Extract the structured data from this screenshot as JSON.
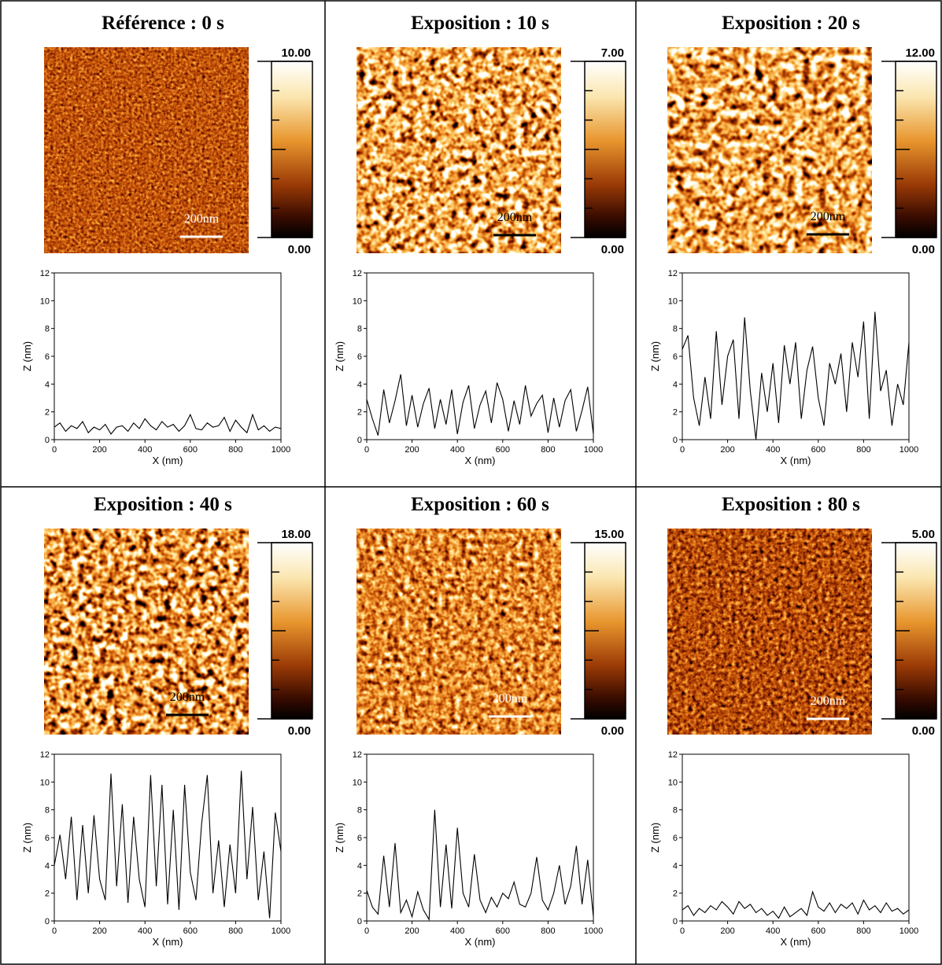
{
  "chart_data": [
    {
      "type": "line",
      "title": "Référence : 0 s",
      "colorbar_labels": [
        "10.00",
        "0.00"
      ],
      "scale_bar": "200nm",
      "x_label": "X (nm)",
      "y_label": "Z (nm)",
      "x": [
        0,
        25,
        50,
        75,
        100,
        125,
        150,
        175,
        200,
        225,
        250,
        275,
        300,
        325,
        350,
        375,
        400,
        425,
        450,
        475,
        500,
        525,
        550,
        575,
        600,
        625,
        650,
        675,
        700,
        725,
        750,
        775,
        800,
        825,
        850,
        875,
        900,
        925,
        950,
        975,
        1000
      ],
      "values": [
        0.9,
        1.2,
        0.6,
        1.0,
        0.8,
        1.3,
        0.5,
        0.9,
        0.7,
        1.1,
        0.4,
        0.9,
        1.0,
        0.6,
        1.2,
        0.8,
        1.5,
        1.0,
        0.7,
        1.3,
        0.9,
        1.1,
        0.6,
        1.0,
        1.8,
        0.8,
        0.7,
        1.2,
        0.9,
        1.0,
        1.6,
        0.6,
        1.4,
        0.9,
        0.5,
        1.8,
        0.7,
        1.0,
        0.6,
        0.9,
        0.8
      ],
      "color": "#000000",
      "xlim": [
        0,
        1000
      ],
      "ylim": [
        0,
        12
      ],
      "xticks": [
        0,
        200,
        400,
        600,
        800,
        1000
      ],
      "yticks": [
        0,
        2,
        4,
        6,
        8,
        10,
        12
      ]
    },
    {
      "type": "line",
      "title": "Exposition : 10 s",
      "colorbar_labels": [
        "7.00",
        "0.00"
      ],
      "scale_bar": "200nm",
      "x_label": "X (nm)",
      "y_label": "Z (nm)",
      "x": [
        0,
        25,
        50,
        75,
        100,
        125,
        150,
        175,
        200,
        225,
        250,
        275,
        300,
        325,
        350,
        375,
        400,
        425,
        450,
        475,
        500,
        525,
        550,
        575,
        600,
        625,
        650,
        675,
        700,
        725,
        750,
        775,
        800,
        825,
        850,
        875,
        900,
        925,
        950,
        975,
        1000
      ],
      "values": [
        2.9,
        1.5,
        0.3,
        3.6,
        1.2,
        2.8,
        4.7,
        1.0,
        3.2,
        0.9,
        2.6,
        3.7,
        0.8,
        2.9,
        1.1,
        3.6,
        0.4,
        2.7,
        3.9,
        0.8,
        2.5,
        3.5,
        1.2,
        4.1,
        2.9,
        0.6,
        2.8,
        1.1,
        3.9,
        1.7,
        2.6,
        3.2,
        0.5,
        3.0,
        0.9,
        2.8,
        3.6,
        0.6,
        2.1,
        3.8,
        0.4
      ],
      "color": "#000000",
      "xlim": [
        0,
        1000
      ],
      "ylim": [
        0,
        12
      ],
      "xticks": [
        0,
        200,
        400,
        600,
        800,
        1000
      ],
      "yticks": [
        0,
        2,
        4,
        6,
        8,
        10,
        12
      ]
    },
    {
      "type": "line",
      "title": "Exposition : 20 s",
      "colorbar_labels": [
        "12.00",
        "0.00"
      ],
      "scale_bar": "200nm",
      "x_label": "X (nm)",
      "y_label": "Z (nm)",
      "x": [
        0,
        25,
        50,
        75,
        100,
        125,
        150,
        175,
        200,
        225,
        250,
        275,
        300,
        325,
        350,
        375,
        400,
        425,
        450,
        475,
        500,
        525,
        550,
        575,
        600,
        625,
        650,
        675,
        700,
        725,
        750,
        775,
        800,
        825,
        850,
        875,
        900,
        925,
        950,
        975,
        1000
      ],
      "values": [
        6.5,
        7.5,
        3.0,
        1.0,
        4.5,
        1.5,
        7.8,
        2.5,
        6.0,
        7.2,
        1.5,
        8.8,
        3.5,
        0.0,
        4.8,
        2.0,
        5.5,
        1.2,
        6.8,
        4.0,
        7.0,
        1.5,
        5.0,
        6.7,
        3.0,
        1.0,
        5.5,
        4.0,
        6.2,
        2.0,
        7.0,
        4.5,
        8.5,
        1.5,
        9.2,
        3.5,
        5.0,
        1.0,
        4.0,
        2.5,
        7.0
      ],
      "color": "#000000",
      "xlim": [
        0,
        1000
      ],
      "ylim": [
        0,
        12
      ],
      "xticks": [
        0,
        200,
        400,
        600,
        800,
        1000
      ],
      "yticks": [
        0,
        2,
        4,
        6,
        8,
        10,
        12
      ]
    },
    {
      "type": "line",
      "title": "Exposition : 40 s",
      "colorbar_labels": [
        "18.00",
        "0.00"
      ],
      "scale_bar": "200nm",
      "x_label": "X (nm)",
      "y_label": "Z (nm)",
      "x": [
        0,
        25,
        50,
        75,
        100,
        125,
        150,
        175,
        200,
        225,
        250,
        275,
        300,
        325,
        350,
        375,
        400,
        425,
        450,
        475,
        500,
        525,
        550,
        575,
        600,
        625,
        650,
        675,
        700,
        725,
        750,
        775,
        800,
        825,
        850,
        875,
        900,
        925,
        950,
        975,
        1000
      ],
      "values": [
        4.0,
        6.2,
        3.0,
        7.5,
        1.5,
        6.9,
        2.0,
        7.6,
        3.0,
        1.5,
        10.6,
        2.5,
        8.4,
        1.3,
        7.5,
        3.0,
        1.0,
        10.5,
        2.5,
        9.8,
        1.2,
        8.0,
        0.8,
        9.8,
        3.5,
        1.5,
        7.0,
        10.5,
        2.0,
        5.8,
        1.0,
        5.5,
        2.0,
        10.8,
        3.0,
        8.2,
        1.5,
        5.0,
        0.2,
        7.8,
        5.0
      ],
      "color": "#000000",
      "xlim": [
        0,
        1000
      ],
      "ylim": [
        0,
        12
      ],
      "xticks": [
        0,
        200,
        400,
        600,
        800,
        1000
      ],
      "yticks": [
        0,
        2,
        4,
        6,
        8,
        10,
        12
      ]
    },
    {
      "type": "line",
      "title": "Exposition : 60 s",
      "colorbar_labels": [
        "15.00",
        "0.00"
      ],
      "scale_bar": "200nm",
      "x_label": "X (nm)",
      "y_label": "Z (nm)",
      "x": [
        0,
        25,
        50,
        75,
        100,
        125,
        150,
        175,
        200,
        225,
        250,
        275,
        300,
        325,
        350,
        375,
        400,
        425,
        450,
        475,
        500,
        525,
        550,
        575,
        600,
        625,
        650,
        675,
        700,
        725,
        750,
        775,
        800,
        825,
        850,
        875,
        900,
        925,
        950,
        975,
        1000
      ],
      "values": [
        2.2,
        1.0,
        0.5,
        4.7,
        1.0,
        5.6,
        0.6,
        1.5,
        0.3,
        2.1,
        0.8,
        0.1,
        8.0,
        1.0,
        5.5,
        0.9,
        6.7,
        2.0,
        1.0,
        4.8,
        1.5,
        0.6,
        1.7,
        1.0,
        2.0,
        1.6,
        2.8,
        1.2,
        1.0,
        2.0,
        4.6,
        1.5,
        0.8,
        2.0,
        4.0,
        1.2,
        2.5,
        5.4,
        1.2,
        4.4,
        0.3
      ],
      "color": "#000000",
      "xlim": [
        0,
        1000
      ],
      "ylim": [
        0,
        12
      ],
      "xticks": [
        0,
        200,
        400,
        600,
        800,
        1000
      ],
      "yticks": [
        0,
        2,
        4,
        6,
        8,
        10,
        12
      ]
    },
    {
      "type": "line",
      "title": "Exposition : 80 s",
      "colorbar_labels": [
        "5.00",
        "0.00"
      ],
      "scale_bar": "200nm",
      "x_label": "X (nm)",
      "y_label": "Z (nm)",
      "x": [
        0,
        25,
        50,
        75,
        100,
        125,
        150,
        175,
        200,
        225,
        250,
        275,
        300,
        325,
        350,
        375,
        400,
        425,
        450,
        475,
        500,
        525,
        550,
        575,
        600,
        625,
        650,
        675,
        700,
        725,
        750,
        775,
        800,
        825,
        850,
        875,
        900,
        925,
        950,
        975,
        1000
      ],
      "values": [
        0.8,
        1.1,
        0.4,
        0.9,
        0.6,
        1.1,
        0.8,
        1.4,
        1.0,
        0.5,
        1.4,
        0.9,
        1.2,
        0.6,
        0.9,
        0.4,
        0.7,
        0.2,
        1.0,
        0.3,
        0.6,
        0.9,
        0.4,
        2.1,
        1.0,
        0.7,
        1.3,
        0.6,
        1.2,
        0.9,
        1.3,
        0.5,
        1.5,
        0.8,
        1.1,
        0.6,
        1.3,
        0.7,
        0.9,
        0.5,
        0.8
      ],
      "color": "#000000",
      "xlim": [
        0,
        1000
      ],
      "ylim": [
        0,
        12
      ],
      "xticks": [
        0,
        200,
        400,
        600,
        800,
        1000
      ],
      "yticks": [
        0,
        2,
        4,
        6,
        8,
        10,
        12
      ]
    }
  ]
}
